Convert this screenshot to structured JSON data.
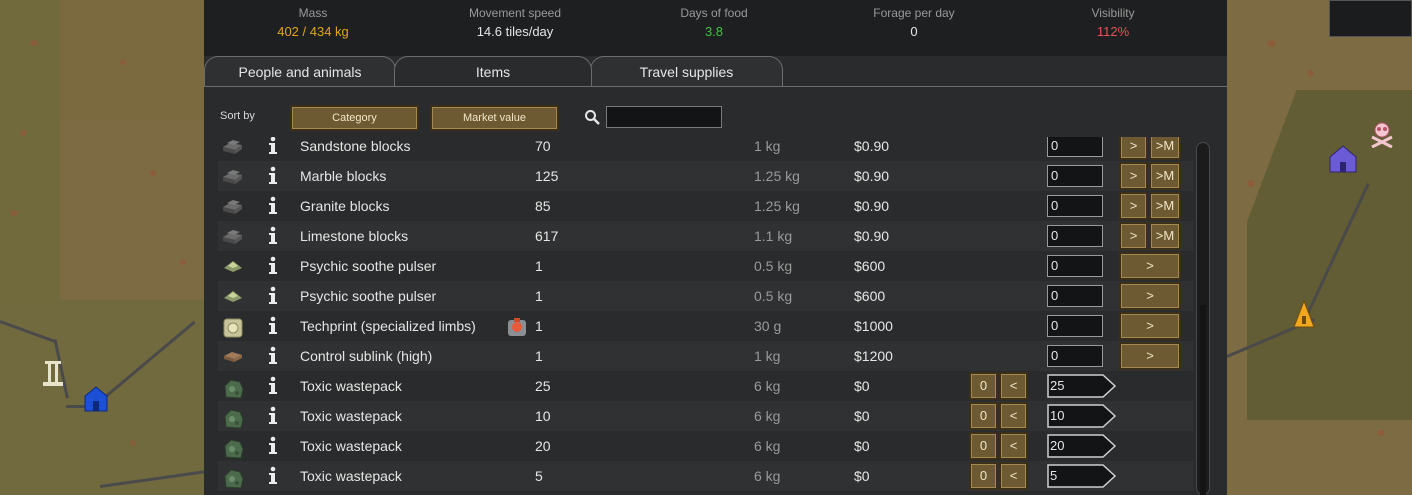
{
  "stats": [
    {
      "label": "Mass",
      "value": "402 / 434 kg",
      "color": "#e0a51c"
    },
    {
      "label": "Movement speed",
      "value": "14.6 tiles/day",
      "color": "#e6e6e6"
    },
    {
      "label": "Days of food",
      "value": "3.8",
      "color": "#3fc43f"
    },
    {
      "label": "Forage per day",
      "value": "0",
      "color": "#e6e6e6"
    },
    {
      "label": "Visibility",
      "value": "112%",
      "color": "#e05656"
    }
  ],
  "tabs": [
    {
      "label": "People and animals",
      "active": false
    },
    {
      "label": "Items",
      "active": true
    },
    {
      "label": "Travel supplies",
      "active": false
    }
  ],
  "sort": {
    "label": "Sort by",
    "primary": "Category",
    "secondary": "Market value"
  },
  "search": {
    "placeholder": ""
  },
  "rows": [
    {
      "name": "Sandstone blocks",
      "count": "70",
      "mass": "1 kg",
      "value": "$0.90",
      "qty": "0",
      "mode": "sell",
      "icon": "stone-blocks-icon"
    },
    {
      "name": "Marble blocks",
      "count": "125",
      "mass": "1.25 kg",
      "value": "$0.90",
      "qty": "0",
      "mode": "sell",
      "icon": "stone-blocks-icon"
    },
    {
      "name": "Granite blocks",
      "count": "85",
      "mass": "1.25 kg",
      "value": "$0.90",
      "qty": "0",
      "mode": "sell",
      "icon": "stone-blocks-icon"
    },
    {
      "name": "Limestone blocks",
      "count": "617",
      "mass": "1.1 kg",
      "value": "$0.90",
      "qty": "0",
      "mode": "sell",
      "icon": "stone-blocks-icon"
    },
    {
      "name": "Psychic soothe pulser",
      "count": "1",
      "mass": "0.5 kg",
      "value": "$600",
      "qty": "0",
      "mode": "single",
      "icon": "pulser-icon"
    },
    {
      "name": "Psychic soothe pulser",
      "count": "1",
      "mass": "0.5 kg",
      "value": "$600",
      "qty": "0",
      "mode": "single",
      "icon": "pulser-icon"
    },
    {
      "name": "Techprint (specialized limbs)",
      "count": "1",
      "mass": "30 g",
      "value": "$1000",
      "qty": "0",
      "mode": "single",
      "icon": "techprint-icon",
      "extra_icon": "research-project-icon"
    },
    {
      "name": "Control sublink (high)",
      "count": "1",
      "mass": "1 kg",
      "value": "$1200",
      "qty": "0",
      "mode": "single",
      "icon": "sublink-icon"
    },
    {
      "name": "Toxic wastepack",
      "count": "25",
      "mass": "6 kg",
      "value": "$0",
      "qty": "25",
      "mode": "added",
      "icon": "wastepack-icon"
    },
    {
      "name": "Toxic wastepack",
      "count": "10",
      "mass": "6 kg",
      "value": "$0",
      "qty": "10",
      "mode": "added",
      "icon": "wastepack-icon"
    },
    {
      "name": "Toxic wastepack",
      "count": "20",
      "mass": "6 kg",
      "value": "$0",
      "qty": "20",
      "mode": "added",
      "icon": "wastepack-icon"
    },
    {
      "name": "Toxic wastepack",
      "count": "5",
      "mass": "6 kg",
      "value": "$0",
      "qty": "5",
      "mode": "added",
      "icon": "wastepack-icon"
    }
  ],
  "buttons": {
    "add_one": ">",
    "add_max": ">M",
    "remove_all": "0",
    "remove_one": "<"
  }
}
